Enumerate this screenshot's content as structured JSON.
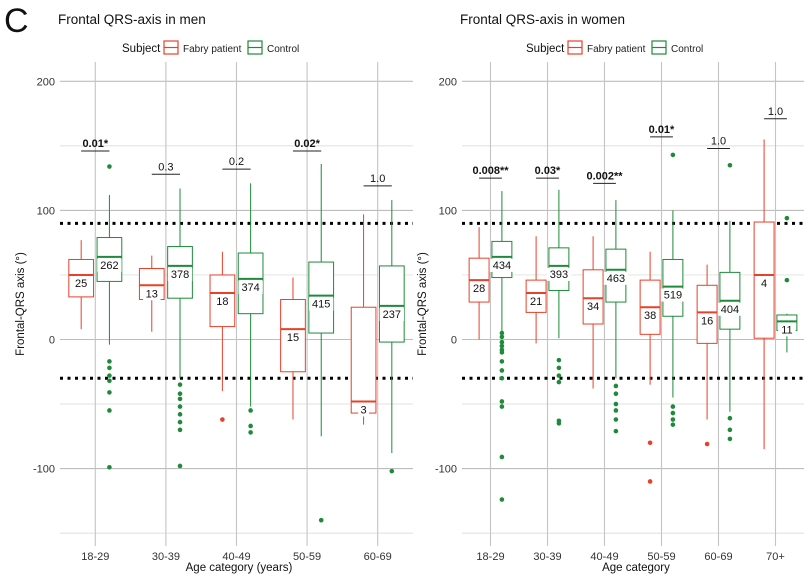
{
  "panel_letter": "C",
  "legend": {
    "title": "Subject",
    "items": [
      {
        "label": "Fabry patient",
        "color": "#e8402a"
      },
      {
        "label": "Control",
        "color": "#1e8a3a"
      }
    ]
  },
  "chart_data": [
    {
      "type": "boxplot",
      "title": "Frontal QRS-axis in men",
      "xlabel": "Age category (years)",
      "ylabel": "Frontal-QRS axis (°)",
      "ylim": [
        -160,
        215
      ],
      "yticks": [
        "-100",
        "0",
        "100",
        "200"
      ],
      "reference_lines": [
        90,
        -30
      ],
      "grid": true,
      "categories": [
        "18-29",
        "30-39",
        "40-49",
        "50-59",
        "60-69"
      ],
      "series": [
        {
          "name": "Fabry patient",
          "boxes": [
            {
              "q1": 33,
              "median": 50,
              "q3": 62,
              "low": 8,
              "high": 77,
              "n": "25",
              "outliers": []
            },
            {
              "q1": 31,
              "median": 42,
              "q3": 55,
              "low": 6,
              "high": 65,
              "n": "13",
              "outliers": []
            },
            {
              "q1": 10,
              "median": 36,
              "q3": 50,
              "low": -40,
              "high": 68,
              "n": "18",
              "outliers": [
                -62
              ]
            },
            {
              "q1": -25,
              "median": 8,
              "q3": 31,
              "low": -62,
              "high": 48,
              "n": "15",
              "outliers": []
            },
            {
              "q1": -57,
              "median": -48,
              "q3": 25,
              "low": -66,
              "high": 97,
              "n": "3",
              "outliers": []
            }
          ]
        },
        {
          "name": "Control",
          "boxes": [
            {
              "q1": 45,
              "median": 64,
              "q3": 79,
              "low": -4,
              "high": 112,
              "n": "262",
              "outliers": [
                134,
                -17,
                -22,
                -28,
                -32,
                -41,
                -55,
                -99
              ]
            },
            {
              "q1": 32,
              "median": 57,
              "q3": 72,
              "low": -30,
              "high": 117,
              "n": "378",
              "outliers": [
                -35,
                -42,
                -46,
                -52,
                -58,
                -64,
                -70,
                -98
              ]
            },
            {
              "q1": 20,
              "median": 47,
              "q3": 67,
              "low": -52,
              "high": 121,
              "n": "374",
              "outliers": [
                -55,
                -67,
                -72
              ]
            },
            {
              "q1": 5,
              "median": 34,
              "q3": 60,
              "low": -75,
              "high": 136,
              "n": "415",
              "outliers": [
                -140
              ]
            },
            {
              "q1": -2,
              "median": 26,
              "q3": 57,
              "low": -88,
              "high": 108,
              "n": "237",
              "outliers": [
                -102
              ]
            }
          ]
        }
      ],
      "pvalues": [
        {
          "text": "0.01*",
          "significant": true,
          "y": 146
        },
        {
          "text": "0.3",
          "significant": false,
          "y": 128
        },
        {
          "text": "0.2",
          "significant": false,
          "y": 132
        },
        {
          "text": "0.02*",
          "significant": true,
          "y": 146
        },
        {
          "text": "1.0",
          "significant": false,
          "y": 119
        }
      ]
    },
    {
      "type": "boxplot",
      "title": "Frontal QRS-axis in women",
      "xlabel": "Age category",
      "ylabel": "Frontal-QRS axis (°)",
      "ylim": [
        -160,
        215
      ],
      "yticks": [
        "-100",
        "0",
        "100",
        "200"
      ],
      "reference_lines": [
        90,
        -30
      ],
      "grid": true,
      "categories": [
        "18-29",
        "30-39",
        "40-49",
        "50-59",
        "60-69",
        "70+"
      ],
      "series": [
        {
          "name": "Fabry patient",
          "boxes": [
            {
              "q1": 29,
              "median": 46,
              "q3": 63,
              "low": 0,
              "high": 87,
              "n": "28",
              "outliers": []
            },
            {
              "q1": 21,
              "median": 36,
              "q3": 46,
              "low": -3,
              "high": 80,
              "n": "21",
              "outliers": []
            },
            {
              "q1": 12,
              "median": 32,
              "q3": 54,
              "low": -38,
              "high": 80,
              "n": "34",
              "outliers": []
            },
            {
              "q1": 4,
              "median": 25,
              "q3": 46,
              "low": -35,
              "high": 68,
              "n": "38",
              "outliers": [
                -80,
                -110
              ]
            },
            {
              "q1": -3,
              "median": 21,
              "q3": 42,
              "low": -62,
              "high": 58,
              "n": "16",
              "outliers": [
                -81
              ]
            },
            {
              "q1": 1,
              "median": 50,
              "q3": 91,
              "low": -85,
              "high": 155,
              "n": "4",
              "outliers": []
            }
          ]
        },
        {
          "name": "Control",
          "boxes": [
            {
              "q1": 48,
              "median": 64,
              "q3": 76,
              "low": 6,
              "high": 115,
              "n": "434",
              "outliers": [
                5,
                2,
                -2,
                -5,
                -8,
                -10,
                -17,
                -24,
                -30,
                -48,
                -52,
                -91,
                -124
              ]
            },
            {
              "q1": 38,
              "median": 57,
              "q3": 71,
              "low": 1,
              "high": 116,
              "n": "393",
              "outliers": [
                -16,
                -22,
                -28,
                -33,
                -63,
                -65
              ]
            },
            {
              "q1": 29,
              "median": 54,
              "q3": 70,
              "low": -30,
              "high": 108,
              "n": "463",
              "outliers": [
                -36,
                -42,
                -50,
                -55,
                -62,
                -71
              ]
            },
            {
              "q1": 18,
              "median": 41,
              "q3": 62,
              "low": -45,
              "high": 100,
              "n": "519",
              "outliers": [
                143,
                -52,
                -57,
                -62,
                -66
              ]
            },
            {
              "q1": 8,
              "median": 30,
              "q3": 52,
              "low": -56,
              "high": 92,
              "n": "404",
              "outliers": [
                135,
                -61,
                -70,
                -77
              ]
            },
            {
              "q1": 7,
              "median": 14,
              "q3": 19,
              "low": -10,
              "high": 20,
              "n": "11",
              "outliers": [
                94,
                46
              ]
            }
          ]
        }
      ],
      "pvalues": [
        {
          "text": "0.008**",
          "significant": true,
          "y": 125
        },
        {
          "text": "0.03*",
          "significant": true,
          "y": 125
        },
        {
          "text": "0.002**",
          "significant": true,
          "y": 121
        },
        {
          "text": "0.01*",
          "significant": true,
          "y": 157
        },
        {
          "text": "1.0",
          "significant": false,
          "y": 148
        },
        {
          "text": "1.0",
          "significant": false,
          "y": 171
        }
      ]
    }
  ]
}
